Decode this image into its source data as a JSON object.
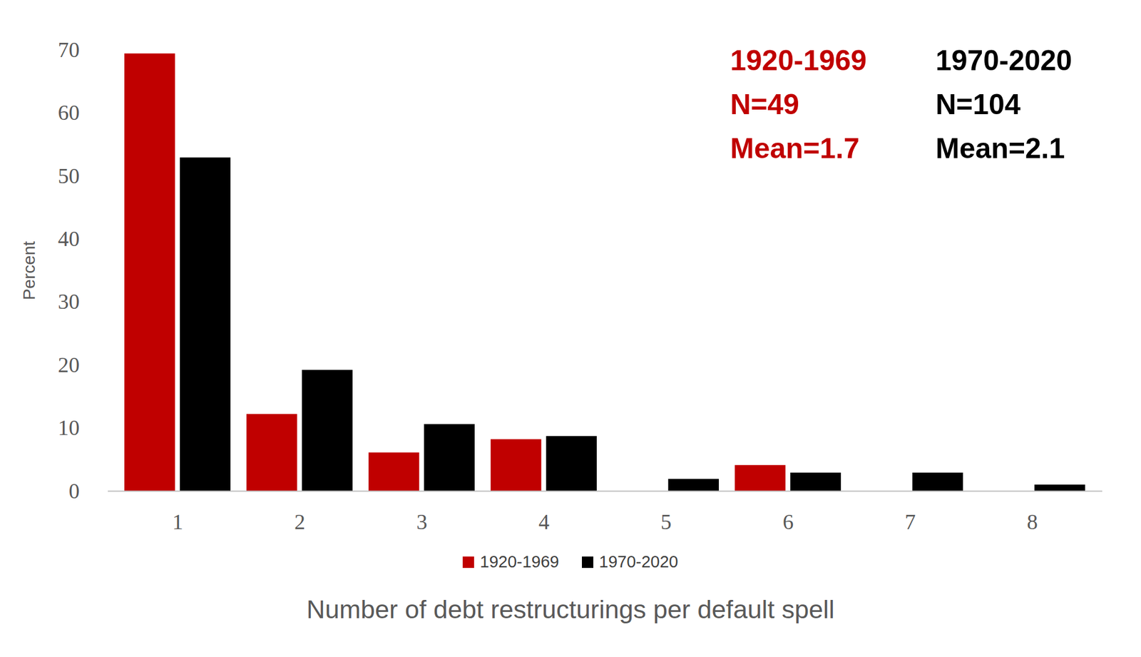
{
  "chart_data": {
    "type": "bar",
    "x_label": "Number of debt restructurings per default spell",
    "y_label": "Percent",
    "categories": [
      "1",
      "2",
      "3",
      "4",
      "5",
      "6",
      "7",
      "8"
    ],
    "series": [
      {
        "name": "1920-1969",
        "color": "#c00000",
        "values": [
          69.4,
          12.2,
          6.1,
          8.2,
          0,
          4.1,
          0,
          0
        ]
      },
      {
        "name": "1970-2020",
        "color": "#000000",
        "values": [
          52.9,
          19.2,
          10.6,
          8.7,
          1.9,
          2.9,
          2.9,
          1.0
        ]
      }
    ],
    "annotations": [
      {
        "text": [
          "1920-1969",
          "N=49",
          "Mean=1.7"
        ],
        "color": "#c00000"
      },
      {
        "text": [
          "1970-2020",
          "N=104",
          "Mean=2.1"
        ],
        "color": "#000000"
      }
    ],
    "ylim": [
      0,
      70
    ],
    "yticks": [
      0,
      10,
      20,
      30,
      40,
      50,
      60,
      70
    ],
    "grid": false,
    "legend": "bottom"
  }
}
